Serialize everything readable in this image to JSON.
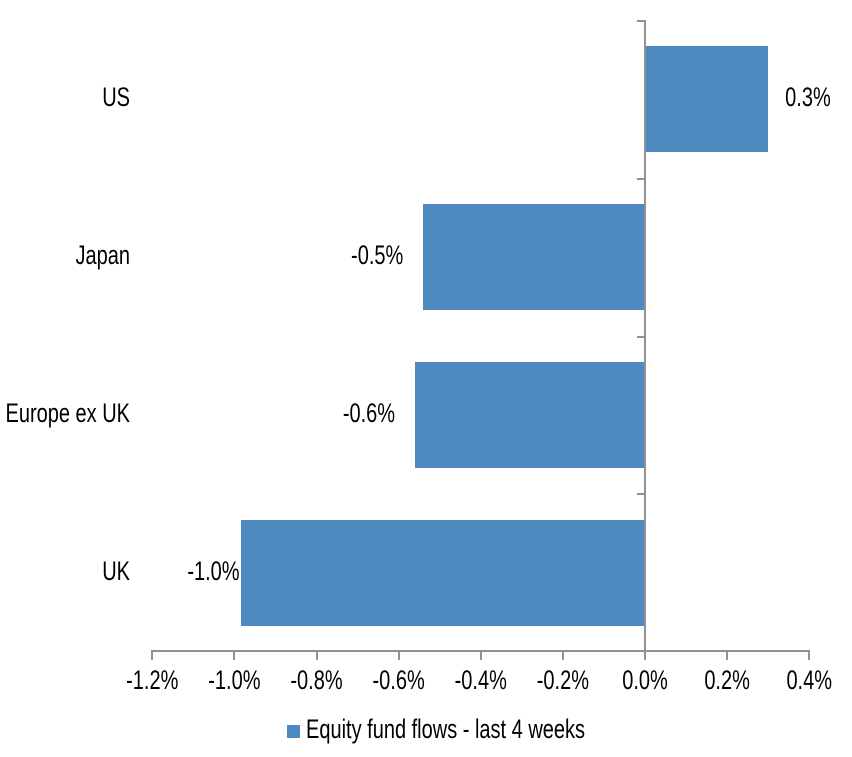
{
  "chart_data": {
    "type": "bar",
    "orientation": "horizontal",
    "title": "",
    "categories": [
      "US",
      "Japan",
      "Europe ex UK",
      "UK"
    ],
    "values": [
      0.3,
      -0.5,
      -0.6,
      -1.0
    ],
    "value_labels": [
      "0.3%",
      "-0.5%",
      "-0.6%",
      "-1.0%"
    ],
    "values_precise": [
      0.3,
      -0.54,
      -0.56,
      -0.985
    ],
    "unit": "%",
    "x_axis": {
      "range": [
        -1.2,
        0.4
      ],
      "tick_step": 0.2,
      "tick_values": [
        -1.2,
        -1.0,
        -0.8,
        -0.6,
        -0.4,
        -0.2,
        0.0,
        0.2,
        0.4
      ],
      "tick_labels": [
        "-1.2%",
        "-1.0%",
        "-0.8%",
        "-0.6%",
        "-0.4%",
        "-0.2%",
        "0.0%",
        "0.2%",
        "0.4%"
      ]
    },
    "grid": false,
    "legend": {
      "label": "Equity fund flows - last 4 weeks",
      "position": "bottom-center",
      "marker": "square",
      "marker_color": "#4E89C0"
    },
    "colors": {
      "bar": "#4E89C0",
      "axis": "#929292",
      "text": "#000000",
      "background": "#FFFFFF"
    }
  }
}
